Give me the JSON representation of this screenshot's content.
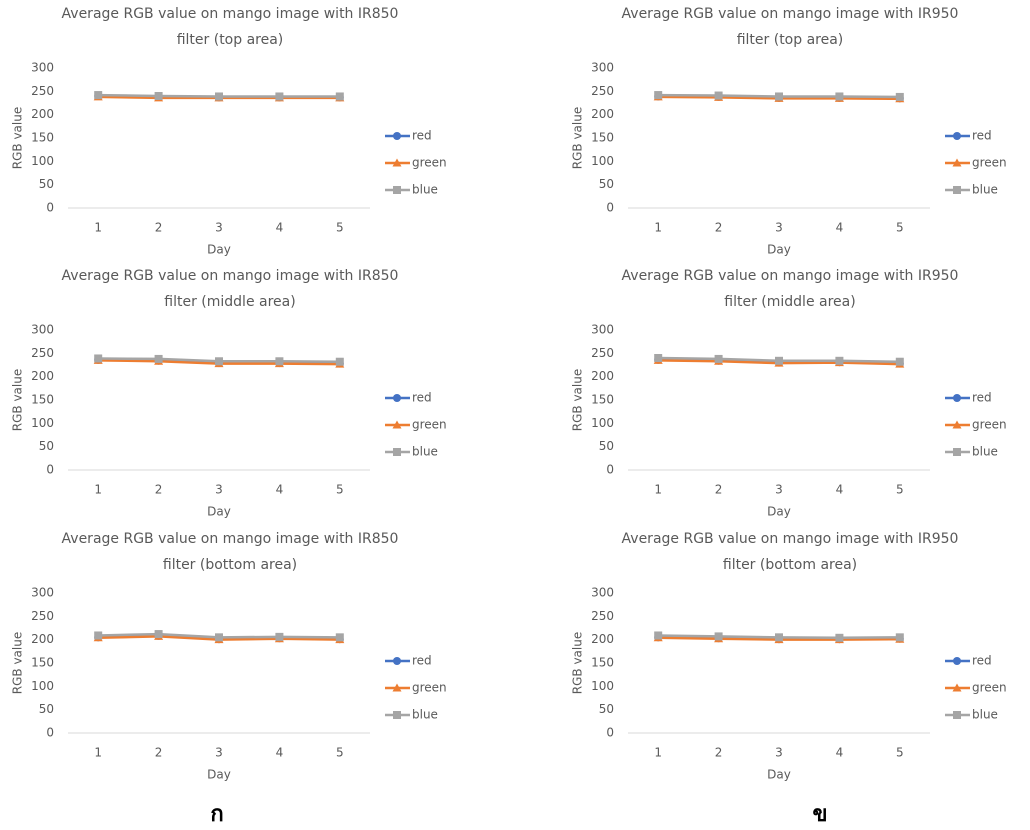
{
  "chart_data": [
    {
      "type": "line",
      "title": [
        "Average RGB value on mango image with IR850",
        "filter (top area)"
      ],
      "xlabel": "Day",
      "ylabel": "RGB value",
      "categories": [
        "1",
        "2",
        "3",
        "4",
        "5"
      ],
      "ylim": [
        0,
        300
      ],
      "yticks": [
        0,
        50,
        100,
        150,
        200,
        250,
        300
      ],
      "legend": "right",
      "series": [
        {
          "name": "red",
          "color": "#4472c4",
          "marker": "circle",
          "values": [
            240,
            238,
            237,
            237,
            237
          ]
        },
        {
          "name": "green",
          "color": "#ed7d31",
          "marker": "triangle",
          "values": [
            238,
            236,
            236,
            236,
            236
          ]
        },
        {
          "name": "blue",
          "color": "#a5a5a5",
          "marker": "square",
          "values": [
            242,
            240,
            239,
            239,
            239
          ]
        }
      ]
    },
    {
      "type": "line",
      "title": [
        "Average RGB value on mango image with IR950",
        "filter (top area)"
      ],
      "xlabel": "Day",
      "ylabel": "RGB value",
      "categories": [
        "1",
        "2",
        "3",
        "4",
        "5"
      ],
      "ylim": [
        0,
        300
      ],
      "yticks": [
        0,
        50,
        100,
        150,
        200,
        250,
        300
      ],
      "legend": "right",
      "series": [
        {
          "name": "red",
          "color": "#4472c4",
          "marker": "circle",
          "values": [
            239,
            238,
            236,
            236,
            235
          ]
        },
        {
          "name": "green",
          "color": "#ed7d31",
          "marker": "triangle",
          "values": [
            238,
            237,
            235,
            235,
            234
          ]
        },
        {
          "name": "blue",
          "color": "#a5a5a5",
          "marker": "square",
          "values": [
            242,
            241,
            239,
            239,
            238
          ]
        }
      ]
    },
    {
      "type": "line",
      "title": [
        "Average RGB value on mango image with IR850",
        "filter (middle area)"
      ],
      "xlabel": "Day",
      "ylabel": "RGB value",
      "categories": [
        "1",
        "2",
        "3",
        "4",
        "5"
      ],
      "ylim": [
        0,
        300
      ],
      "yticks": [
        0,
        50,
        100,
        150,
        200,
        250,
        300
      ],
      "legend": "right",
      "series": [
        {
          "name": "red",
          "color": "#4472c4",
          "marker": "circle",
          "values": [
            236,
            234,
            229,
            229,
            228
          ]
        },
        {
          "name": "green",
          "color": "#ed7d31",
          "marker": "triangle",
          "values": [
            235,
            233,
            228,
            228,
            227
          ]
        },
        {
          "name": "blue",
          "color": "#a5a5a5",
          "marker": "square",
          "values": [
            239,
            238,
            233,
            233,
            232
          ]
        }
      ]
    },
    {
      "type": "line",
      "title": [
        "Average RGB value on mango image with IR950",
        "filter (middle area)"
      ],
      "xlabel": "Day",
      "ylabel": "RGB value",
      "categories": [
        "1",
        "2",
        "3",
        "4",
        "5"
      ],
      "ylim": [
        0,
        300
      ],
      "yticks": [
        0,
        50,
        100,
        150,
        200,
        250,
        300
      ],
      "legend": "right",
      "series": [
        {
          "name": "red",
          "color": "#4472c4",
          "marker": "circle",
          "values": [
            236,
            234,
            230,
            231,
            228
          ]
        },
        {
          "name": "green",
          "color": "#ed7d31",
          "marker": "triangle",
          "values": [
            235,
            233,
            229,
            230,
            227
          ]
        },
        {
          "name": "blue",
          "color": "#a5a5a5",
          "marker": "square",
          "values": [
            240,
            238,
            234,
            234,
            232
          ]
        }
      ]
    },
    {
      "type": "line",
      "title": [
        "Average RGB value on mango image with IR850",
        "filter (bottom area)"
      ],
      "xlabel": "Day",
      "ylabel": "RGB value",
      "categories": [
        "1",
        "2",
        "3",
        "4",
        "5"
      ],
      "ylim": [
        0,
        300
      ],
      "yticks": [
        0,
        50,
        100,
        150,
        200,
        250,
        300
      ],
      "legend": "right",
      "series": [
        {
          "name": "red",
          "color": "#4472c4",
          "marker": "circle",
          "values": [
            205,
            208,
            201,
            203,
            201
          ]
        },
        {
          "name": "green",
          "color": "#ed7d31",
          "marker": "triangle",
          "values": [
            204,
            207,
            200,
            202,
            200
          ]
        },
        {
          "name": "blue",
          "color": "#a5a5a5",
          "marker": "square",
          "values": [
            209,
            212,
            205,
            206,
            205
          ]
        }
      ]
    },
    {
      "type": "line",
      "title": [
        "Average RGB value on mango image with IR950",
        "filter (bottom area)"
      ],
      "xlabel": "Day",
      "ylabel": "RGB value",
      "categories": [
        "1",
        "2",
        "3",
        "4",
        "5"
      ],
      "ylim": [
        0,
        300
      ],
      "yticks": [
        0,
        50,
        100,
        150,
        200,
        250,
        300
      ],
      "legend": "right",
      "series": [
        {
          "name": "red",
          "color": "#4472c4",
          "marker": "circle",
          "values": [
            205,
            203,
            201,
            201,
            202
          ]
        },
        {
          "name": "green",
          "color": "#ed7d31",
          "marker": "triangle",
          "values": [
            204,
            202,
            200,
            200,
            201
          ]
        },
        {
          "name": "blue",
          "color": "#a5a5a5",
          "marker": "square",
          "values": [
            209,
            207,
            205,
            204,
            205
          ]
        }
      ]
    }
  ],
  "captions": [
    "ก",
    "ข"
  ]
}
